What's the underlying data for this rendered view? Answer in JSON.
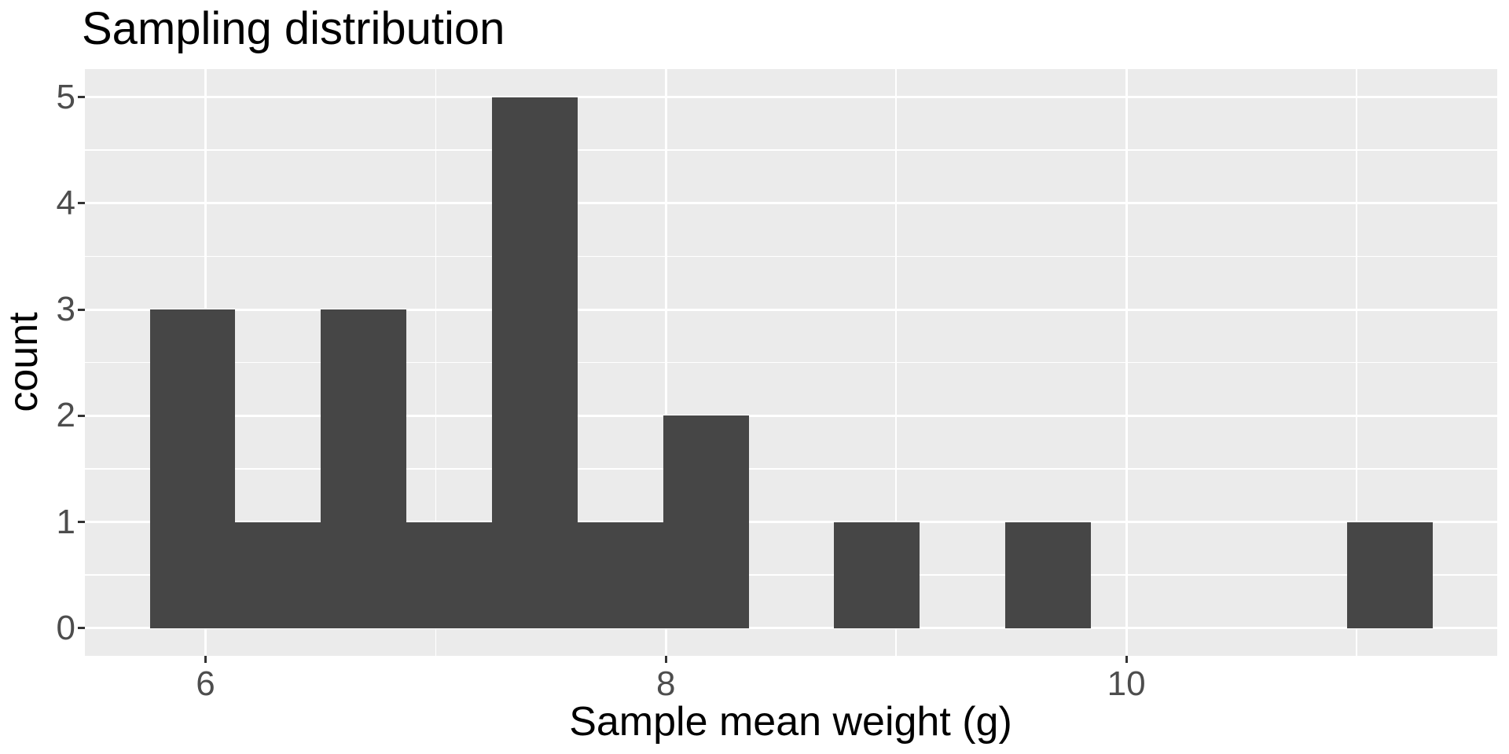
{
  "chart_data": {
    "type": "bar",
    "subtype": "histogram",
    "title": "Sampling distribution",
    "xlabel": "Sample mean weight (g)",
    "ylabel": "count",
    "bins": {
      "start": 5.758,
      "width": 0.3716
    },
    "counts": [
      3,
      1,
      3,
      1,
      5,
      1,
      2,
      0,
      1,
      0,
      1,
      0,
      0,
      0,
      1
    ],
    "x_axis": {
      "major_ticks": [
        6,
        8,
        10
      ],
      "tick_labels": [
        "6",
        "8",
        "10"
      ],
      "minor_ticks": [
        7,
        9,
        11
      ],
      "domain": [
        5.476,
        11.611
      ]
    },
    "y_axis": {
      "major_ticks": [
        0,
        1,
        2,
        3,
        4,
        5
      ],
      "tick_labels": [
        "0",
        "1",
        "2",
        "3",
        "4",
        "5"
      ],
      "minor_ticks": [
        0.5,
        1.5,
        2.5,
        3.5,
        4.5
      ],
      "domain": [
        -0.26,
        5.263
      ]
    },
    "grid": "major+minor",
    "legend": "none",
    "colors": {
      "bar_fill": "#464646",
      "panel_bg": "#EBEBEB",
      "grid_major": "#FFFFFF",
      "grid_minor": "#FFFFFF",
      "tick_label": "#4D4D4D",
      "tick_mark": "#333333",
      "title": "#000000",
      "axis_title": "#000000",
      "page_bg": "#FFFFFF"
    }
  }
}
